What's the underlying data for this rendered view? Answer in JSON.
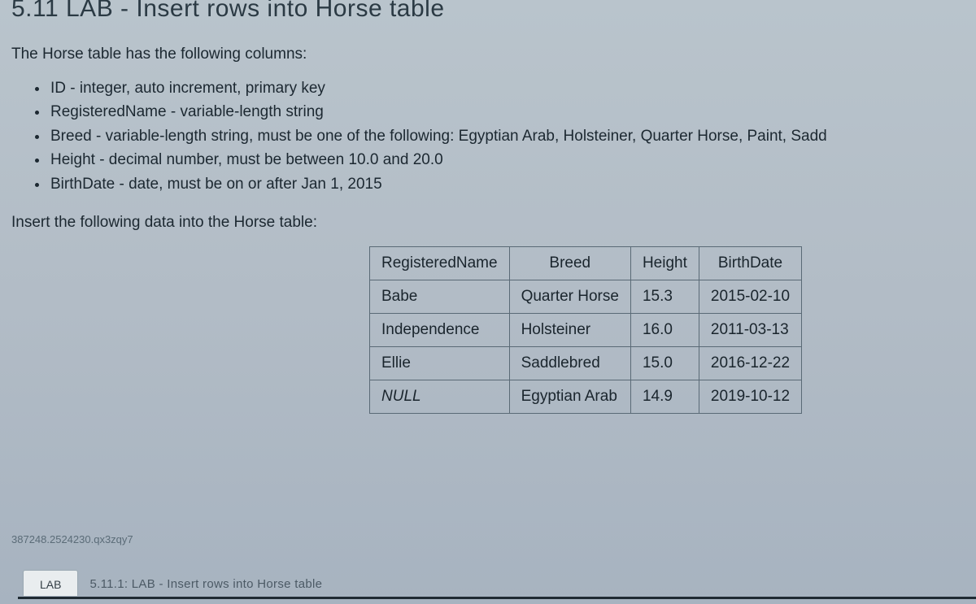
{
  "heading": "5.11 LAB - Insert rows into Horse table",
  "intro": "The Horse table has the following columns:",
  "columns": [
    "ID - integer, auto increment, primary key",
    "RegisteredName - variable-length string",
    "Breed - variable-length string, must be one of the following: Egyptian Arab, Holsteiner, Quarter Horse, Paint, Sadd",
    "Height - decimal number, must be between 10.0 and 20.0",
    "BirthDate - date, must be on or after Jan 1, 2015"
  ],
  "instruction": "Insert the following data into the Horse table:",
  "table": {
    "type": "table",
    "border_color": "#5a6a76",
    "font_size": 19,
    "headers": [
      "RegisteredName",
      "Breed",
      "Height",
      "BirthDate"
    ],
    "header_align": "center",
    "rows": [
      {
        "cells": [
          "Babe",
          "Quarter Horse",
          "15.3",
          "2015-02-10"
        ],
        "italic0": false
      },
      {
        "cells": [
          "Independence",
          "Holsteiner",
          "16.0",
          "2011-03-13"
        ],
        "italic0": false
      },
      {
        "cells": [
          "Ellie",
          "Saddlebred",
          "15.0",
          "2016-12-22"
        ],
        "italic0": false
      },
      {
        "cells": [
          "NULL",
          "Egyptian Arab",
          "14.9",
          "2019-10-12"
        ],
        "italic0": true
      }
    ]
  },
  "footer_id": "387248.2524230.qx3zqy7",
  "tab": {
    "label": "LAB",
    "trail": "5.11.1: LAB - Insert rows into Horse table"
  },
  "colors": {
    "background_top": "#b9c4cc",
    "background_bottom": "#a7b3c0",
    "text": "#1c2831",
    "heading": "#2b3a44",
    "muted": "#5b6c78",
    "tab_bg": "#e9edef"
  }
}
